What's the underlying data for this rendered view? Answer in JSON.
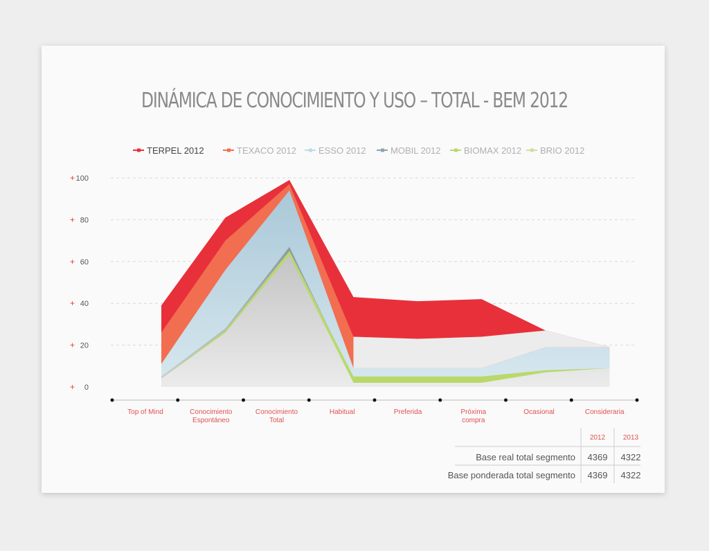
{
  "chart_data": {
    "type": "area",
    "title": "DINÁMICA DE CONOCIMIENTO Y USO – TOTAL - BEM 2012",
    "categories": [
      "Top of Mind",
      "Conocimiento Espontáneo",
      "Conocimiento Total",
      "Habitual",
      "Preferida",
      "Próxima compra",
      "Ocasional",
      "Consideraria"
    ],
    "ylim": [
      0,
      100
    ],
    "yticks": [
      100,
      80,
      60,
      40,
      20,
      0
    ],
    "yprefix": "+",
    "grid": true,
    "legend_position": "top",
    "series": [
      {
        "name": "TERPEL 2012",
        "color": "#e8303a",
        "values": [
          39,
          81,
          99,
          43,
          41,
          42,
          27,
          19
        ]
      },
      {
        "name": "TEXACO 2012",
        "color": "#f26e50",
        "values": [
          26,
          70,
          97,
          24,
          23,
          24,
          27,
          19
        ]
      },
      {
        "name": "ESSO 2012",
        "color": "#bcdbe8",
        "values": [
          11,
          56,
          94,
          9,
          9,
          9,
          19,
          19
        ]
      },
      {
        "name": "MOBIL 2012",
        "color": "#8aa6b4",
        "values": [
          5,
          28,
          67,
          4,
          4,
          4,
          8,
          9
        ]
      },
      {
        "name": "BIOMAX 2012",
        "color": "#b8d96a",
        "values": [
          4,
          27,
          65,
          5,
          5,
          5,
          8,
          9
        ]
      },
      {
        "name": "BRIO 2012",
        "color": "#cfe09a",
        "values": [
          4,
          26,
          63,
          2,
          2,
          2,
          7,
          9
        ]
      }
    ],
    "table": {
      "headers": [
        "2012",
        "2013"
      ],
      "rows": [
        {
          "label": "Base real total segmento",
          "values": [
            "4369",
            "4322"
          ]
        },
        {
          "label": "Base ponderada total segmento",
          "values": [
            "4369",
            "4322"
          ]
        }
      ]
    }
  }
}
